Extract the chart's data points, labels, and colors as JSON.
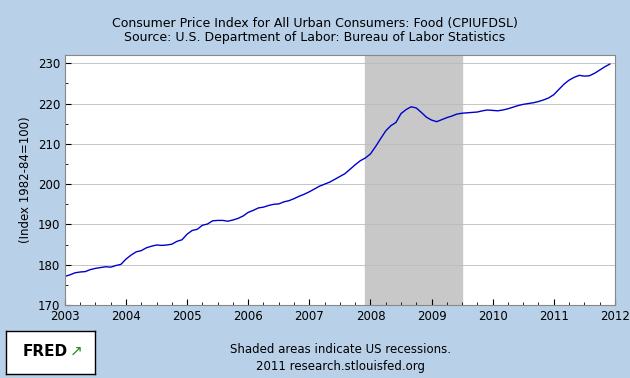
{
  "title_line1": "Consumer Price Index for All Urban Consumers: Food (CPIUFDSL)",
  "title_line2": "Source: U.S. Department of Labor: Bureau of Labor Statistics",
  "ylabel": "(Index 1982-84=100)",
  "xlim": [
    2003.0,
    2012.0
  ],
  "ylim": [
    170,
    232
  ],
  "yticks": [
    170,
    180,
    190,
    200,
    210,
    220,
    230
  ],
  "xticks": [
    2003,
    2004,
    2005,
    2006,
    2007,
    2008,
    2009,
    2010,
    2011,
    2012
  ],
  "recession_start": 2007.917,
  "recession_end": 2009.5,
  "line_color": "#0000CC",
  "background_color": "#B8D0E8",
  "plot_background": "#FFFFFF",
  "recession_color": "#C8C8C8",
  "footer_text_line1": "Shaded areas indicate US recessions.",
  "footer_text_line2": "2011 research.stlouisfed.org",
  "data_x": [
    2003.0,
    2003.083,
    2003.167,
    2003.25,
    2003.333,
    2003.417,
    2003.5,
    2003.583,
    2003.667,
    2003.75,
    2003.833,
    2003.917,
    2004.0,
    2004.083,
    2004.167,
    2004.25,
    2004.333,
    2004.417,
    2004.5,
    2004.583,
    2004.667,
    2004.75,
    2004.833,
    2004.917,
    2005.0,
    2005.083,
    2005.167,
    2005.25,
    2005.333,
    2005.417,
    2005.5,
    2005.583,
    2005.667,
    2005.75,
    2005.833,
    2005.917,
    2006.0,
    2006.083,
    2006.167,
    2006.25,
    2006.333,
    2006.417,
    2006.5,
    2006.583,
    2006.667,
    2006.75,
    2006.833,
    2006.917,
    2007.0,
    2007.083,
    2007.167,
    2007.25,
    2007.333,
    2007.417,
    2007.5,
    2007.583,
    2007.667,
    2007.75,
    2007.833,
    2007.917,
    2008.0,
    2008.083,
    2008.167,
    2008.25,
    2008.333,
    2008.417,
    2008.5,
    2008.583,
    2008.667,
    2008.75,
    2008.833,
    2008.917,
    2009.0,
    2009.083,
    2009.167,
    2009.25,
    2009.333,
    2009.417,
    2009.5,
    2009.583,
    2009.667,
    2009.75,
    2009.833,
    2009.917,
    2010.0,
    2010.083,
    2010.167,
    2010.25,
    2010.333,
    2010.417,
    2010.5,
    2010.583,
    2010.667,
    2010.75,
    2010.833,
    2010.917,
    2011.0,
    2011.083,
    2011.167,
    2011.25,
    2011.333,
    2011.417,
    2011.5,
    2011.583,
    2011.667,
    2011.75,
    2011.833,
    2011.917
  ],
  "data_y": [
    177.1,
    177.5,
    178.0,
    178.2,
    178.3,
    178.8,
    179.1,
    179.3,
    179.5,
    179.4,
    179.8,
    180.1,
    181.4,
    182.4,
    183.2,
    183.5,
    184.2,
    184.6,
    184.9,
    184.8,
    184.9,
    185.1,
    185.8,
    186.2,
    187.6,
    188.5,
    188.8,
    189.8,
    190.1,
    190.9,
    191.0,
    191.0,
    190.8,
    191.1,
    191.5,
    192.1,
    193.0,
    193.5,
    194.1,
    194.3,
    194.7,
    195.0,
    195.1,
    195.6,
    195.9,
    196.4,
    197.0,
    197.5,
    198.1,
    198.8,
    199.5,
    200.0,
    200.5,
    201.2,
    201.9,
    202.6,
    203.7,
    204.8,
    205.8,
    206.5,
    207.5,
    209.3,
    211.3,
    213.2,
    214.5,
    215.3,
    217.5,
    218.5,
    219.2,
    218.9,
    217.8,
    216.6,
    215.9,
    215.5,
    216.0,
    216.5,
    216.9,
    217.4,
    217.6,
    217.7,
    217.8,
    217.9,
    218.2,
    218.4,
    218.3,
    218.2,
    218.4,
    218.7,
    219.1,
    219.5,
    219.8,
    220.0,
    220.2,
    220.5,
    220.9,
    221.4,
    222.2,
    223.5,
    224.8,
    225.8,
    226.5,
    227.0,
    226.8,
    226.9,
    227.5,
    228.3,
    229.1,
    229.8
  ]
}
